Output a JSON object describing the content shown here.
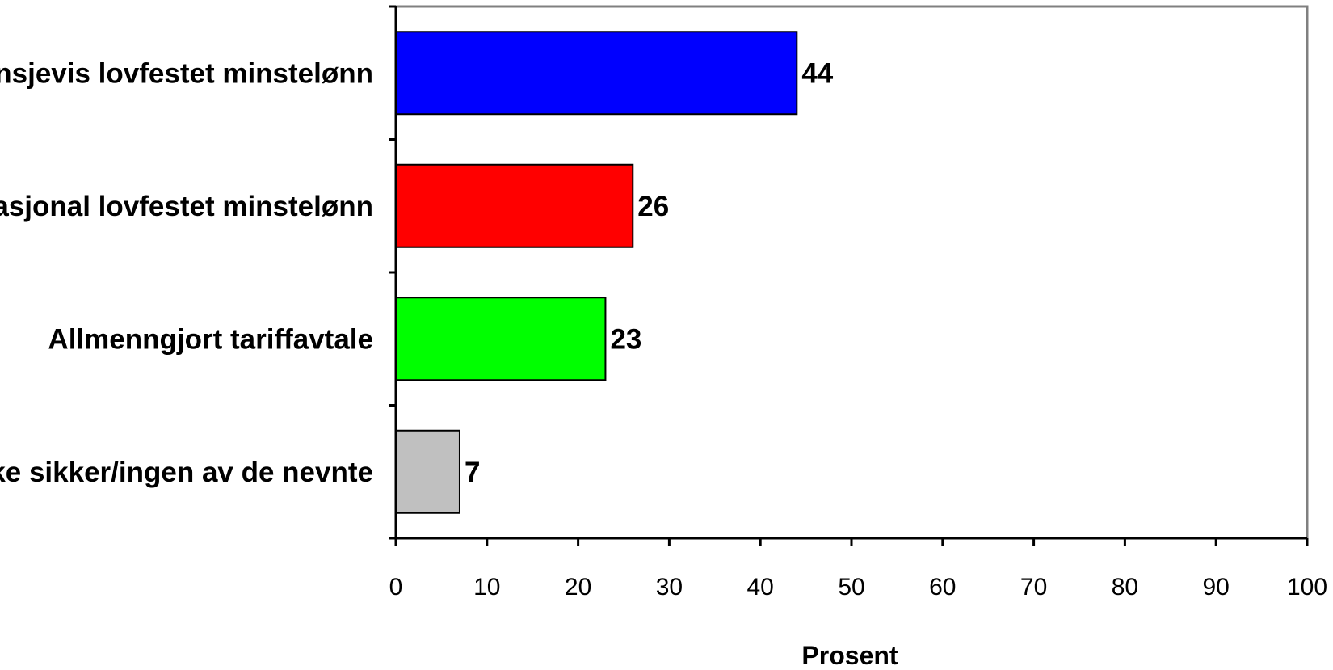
{
  "chart_data": {
    "type": "bar",
    "orientation": "horizontal",
    "title": "",
    "xlabel": "Prosent",
    "ylabel": "",
    "xlim": [
      0,
      100
    ],
    "x_ticks": [
      0,
      10,
      20,
      30,
      40,
      50,
      60,
      70,
      80,
      90,
      100
    ],
    "categories": [
      "Bransjevis lovfestet minstelønn",
      "Nasjonal lovfestet minstelønn",
      "Allmenngjort tariffavtale",
      "Ikke sikker/ingen av de nevnte"
    ],
    "values": [
      44,
      26,
      23,
      7
    ],
    "value_labels": [
      "44",
      "26",
      "23",
      "7"
    ],
    "colors": [
      "#0000ff",
      "#ff0000",
      "#00ff00",
      "#c0c0c0"
    ],
    "grid": false,
    "legend": "none"
  }
}
